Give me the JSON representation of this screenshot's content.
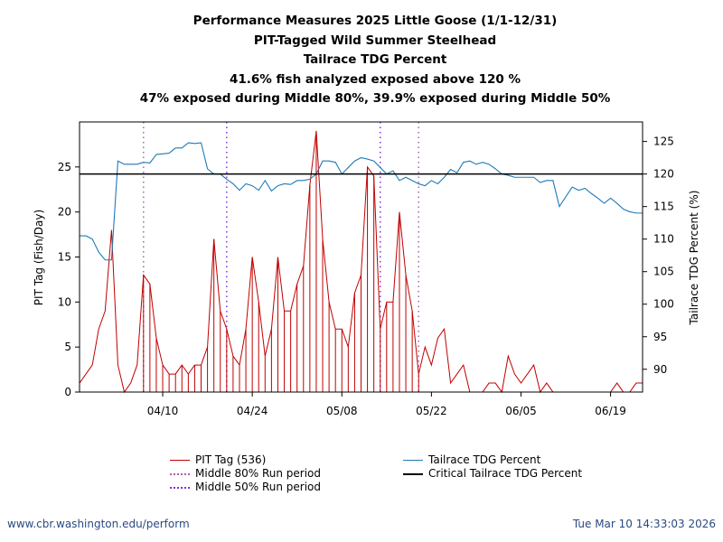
{
  "titles": {
    "line1": "Performance Measures 2025 Little Goose (1/1-12/31)",
    "line2": "PIT-Tagged Wild Summer Steelhead",
    "line3": "Tailrace TDG Percent",
    "line4": "41.6% fish analyzed exposed above 120 %",
    "line5": "47% exposed during Middle 80%, 39.9% exposed during Middle 50%"
  },
  "footer": {
    "left": "www.cbr.washington.edu/perform",
    "right": "Tue Mar 10 14:33:03 2026"
  },
  "legend": {
    "pit": "PIT Tag (536)",
    "mid80": "Middle 80% Run period",
    "mid50": "Middle 50% Run period",
    "tdg": "Tailrace TDG Percent",
    "crit": "Critical Tailrace TDG Percent"
  },
  "colors": {
    "pit": "#c00000",
    "tdg": "#1f7ab5",
    "crit": "#000000",
    "mid80": "#b060b0",
    "mid50": "#8a2be2"
  },
  "chart_data": {
    "type": "line",
    "x_start_date": "2025-03-28",
    "xlim_days": [
      0,
      88
    ],
    "xticks": [
      {
        "day": 13,
        "label": "04/10"
      },
      {
        "day": 27,
        "label": "04/24"
      },
      {
        "day": 41,
        "label": "05/08"
      },
      {
        "day": 55,
        "label": "05/22"
      },
      {
        "day": 69,
        "label": "06/05"
      },
      {
        "day": 83,
        "label": "06/19"
      }
    ],
    "ylabel_left": "PIT Tag (Fish/Day)",
    "ylim_left": [
      0,
      30
    ],
    "yticks_left": [
      0,
      5,
      10,
      15,
      20,
      25
    ],
    "ylabel_right": "Tailrace TDG Percent (%)",
    "ylim_right": [
      86.5,
      128
    ],
    "yticks_right": [
      90,
      95,
      100,
      105,
      110,
      115,
      120,
      125
    ],
    "critical_tdg": 120,
    "middle80_days": [
      10,
      53
    ],
    "middle50_days": [
      23,
      47
    ],
    "series": [
      {
        "name": "PIT Tag (536)",
        "axis": "left",
        "x": [
          0,
          1,
          2,
          3,
          4,
          5,
          6,
          7,
          8,
          9,
          10,
          11,
          12,
          13,
          14,
          15,
          16,
          17,
          18,
          19,
          20,
          21,
          22,
          23,
          24,
          25,
          26,
          27,
          28,
          29,
          30,
          31,
          32,
          33,
          34,
          35,
          36,
          37,
          38,
          39,
          40,
          41,
          42,
          43,
          44,
          45,
          46,
          47,
          48,
          49,
          50,
          51,
          52,
          53,
          54,
          55,
          56,
          57,
          58,
          59,
          60,
          61,
          62,
          63,
          64,
          65,
          66,
          67,
          68,
          69,
          70,
          71,
          72,
          73,
          74,
          75,
          76,
          77,
          78,
          79,
          80,
          81,
          82,
          83,
          84,
          85,
          86,
          87,
          88
        ],
        "values": [
          1,
          2,
          3,
          7,
          9,
          18,
          3,
          0,
          1,
          3,
          13,
          12,
          6,
          3,
          2,
          2,
          3,
          2,
          3,
          3,
          5,
          17,
          9,
          7,
          4,
          3,
          7,
          15,
          10,
          4,
          7,
          15,
          9,
          9,
          12,
          14,
          23,
          29,
          17,
          10,
          7,
          7,
          5,
          11,
          13,
          25,
          24,
          7,
          10,
          10,
          20,
          13,
          9,
          2,
          5,
          3,
          6,
          7,
          1,
          2,
          3,
          0,
          0,
          0,
          1,
          1,
          0,
          4,
          2,
          1,
          2,
          3,
          0,
          1,
          0,
          0,
          0,
          0,
          0,
          0,
          0,
          0,
          0,
          0,
          1,
          0,
          0,
          1,
          1
        ]
      },
      {
        "name": "Tailrace TDG Percent",
        "axis": "right",
        "x": [
          0,
          1,
          2,
          3,
          4,
          5,
          6,
          7,
          8,
          9,
          10,
          11,
          12,
          13,
          14,
          15,
          16,
          17,
          18,
          19,
          20,
          21,
          22,
          23,
          24,
          25,
          26,
          27,
          28,
          29,
          30,
          31,
          32,
          33,
          34,
          35,
          36,
          37,
          38,
          39,
          40,
          41,
          42,
          43,
          44,
          45,
          46,
          47,
          48,
          49,
          50,
          51,
          52,
          53,
          54,
          55,
          56,
          57,
          58,
          59,
          60,
          61,
          62,
          63,
          64,
          65,
          66,
          67,
          68,
          69,
          70,
          71,
          72,
          73,
          74,
          75,
          76,
          77,
          78,
          79,
          80,
          81,
          82,
          83,
          84,
          85,
          86,
          87,
          88
        ],
        "values": [
          110.5,
          110.5,
          110,
          108,
          106.8,
          106.8,
          122,
          121.5,
          121.5,
          121.5,
          121.8,
          121.7,
          123,
          123.1,
          123.2,
          124,
          124,
          124.8,
          124.7,
          124.8,
          120.8,
          120,
          120,
          119.2,
          118.5,
          117.5,
          118.5,
          118.2,
          117.5,
          119,
          117.4,
          118.2,
          118.5,
          118.4,
          119,
          119,
          119.2,
          120,
          122,
          122,
          121.8,
          120,
          121,
          122,
          122.5,
          122.3,
          122,
          121,
          120,
          120.5,
          119,
          119.5,
          119,
          118.5,
          118.2,
          119,
          118.5,
          119.5,
          120.7,
          120.2,
          121.8,
          122,
          121.5,
          121.8,
          121.5,
          120.8,
          120,
          119.8,
          119.5,
          119.5,
          119.5,
          119.5,
          118.7,
          119,
          119,
          115,
          116.5,
          118,
          117.5,
          117.8,
          117,
          116.3,
          115.5,
          116.3,
          115.5,
          114.6,
          114.2,
          114,
          114
        ]
      }
    ]
  }
}
